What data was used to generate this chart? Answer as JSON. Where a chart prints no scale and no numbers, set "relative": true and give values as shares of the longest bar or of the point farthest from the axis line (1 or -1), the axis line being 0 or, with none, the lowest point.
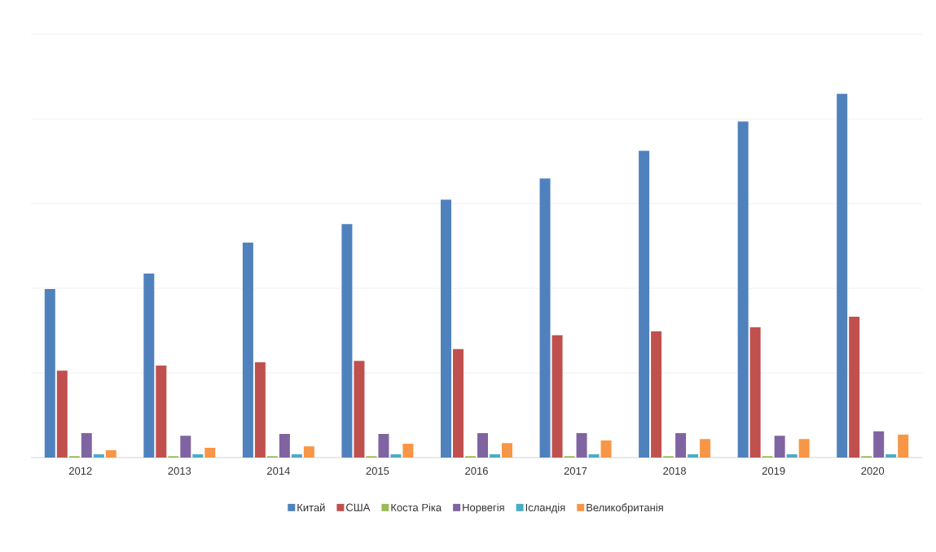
{
  "chart_data": {
    "type": "bar",
    "relative": true,
    "grid": "y",
    "legend": "bottom",
    "categories": [
      "2012",
      "2013",
      "2014",
      "2015",
      "2016",
      "2017",
      "2018",
      "2019",
      "2020"
    ],
    "series": [
      {
        "name": "Китай",
        "color": "#4f81bd",
        "values": [
          0.463,
          0.506,
          0.591,
          0.642,
          0.709,
          0.767,
          0.843,
          0.924,
          1
        ]
      },
      {
        "name": "США",
        "color": "#c0504d",
        "values": [
          0.239,
          0.253,
          0.262,
          0.266,
          0.298,
          0.336,
          0.347,
          0.358,
          0.387
        ]
      },
      {
        "name": "Коста Ріка",
        "color": "#9bbb59",
        "values": [
          0.004,
          0.004,
          0.004,
          0.004,
          0.004,
          0.004,
          0.004,
          0.004,
          0.004
        ]
      },
      {
        "name": "Норвегія",
        "color": "#8064a2",
        "values": [
          0.067,
          0.06,
          0.065,
          0.065,
          0.067,
          0.067,
          0.067,
          0.06,
          0.072
        ]
      },
      {
        "name": "Ісландія",
        "color": "#4bacc6",
        "values": [
          0.009,
          0.009,
          0.009,
          0.009,
          0.009,
          0.009,
          0.009,
          0.009,
          0.009
        ]
      },
      {
        "name": "Великобританія",
        "color": "#f79646",
        "values": [
          0.02,
          0.027,
          0.031,
          0.038,
          0.04,
          0.047,
          0.051,
          0.051,
          0.063
        ]
      }
    ]
  }
}
